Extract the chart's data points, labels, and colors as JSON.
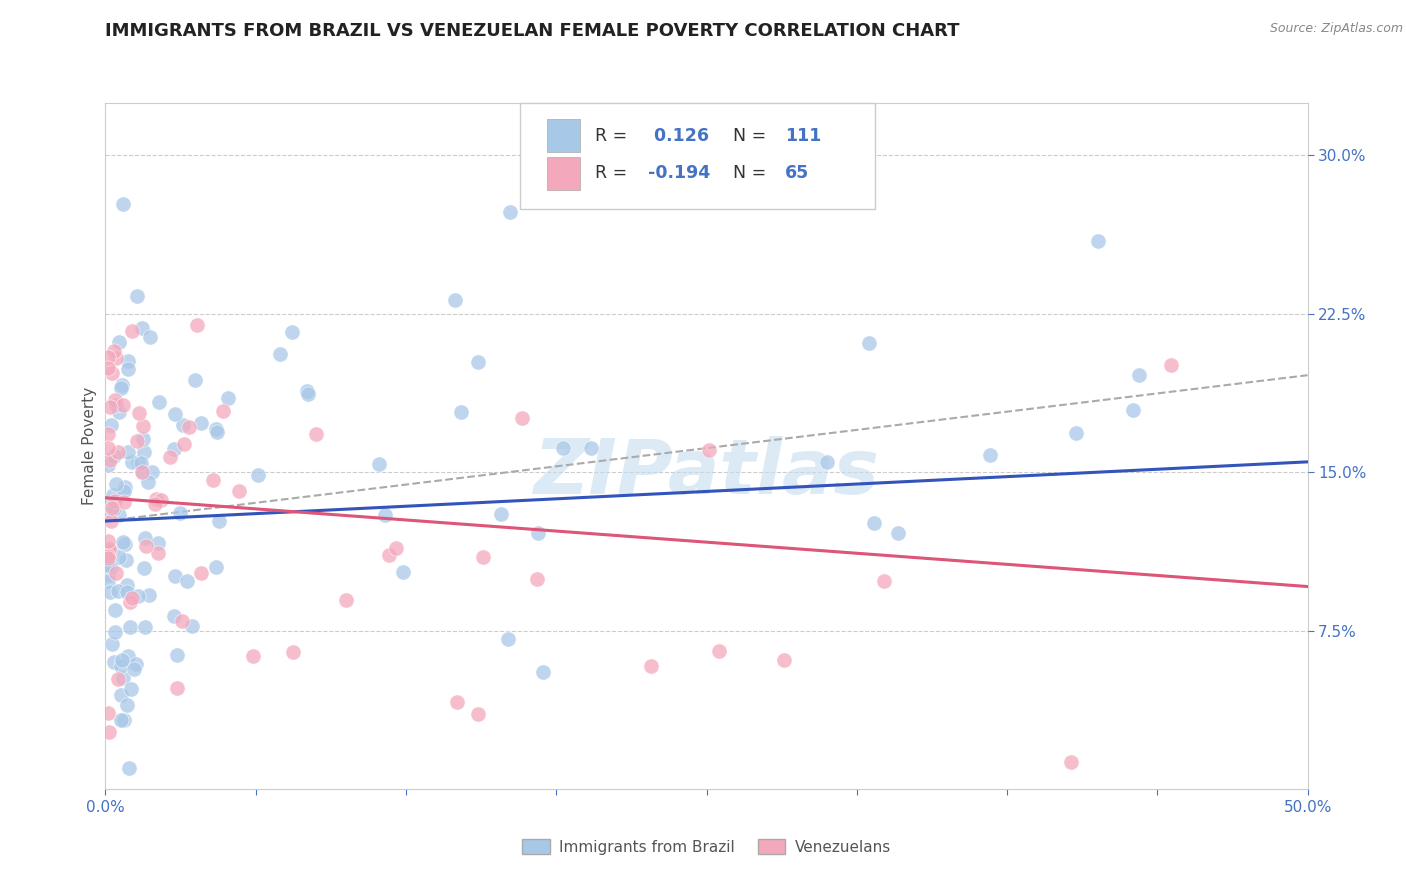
{
  "title": "IMMIGRANTS FROM BRAZIL VS VENEZUELAN FEMALE POVERTY CORRELATION CHART",
  "source_text": "Source: ZipAtlas.com",
  "ylabel": "Female Poverty",
  "xlim": [
    0.0,
    0.5
  ],
  "ylim": [
    0.0,
    0.325
  ],
  "yticks_right": [
    0.075,
    0.15,
    0.225,
    0.3
  ],
  "yticklabels_right": [
    "7.5%",
    "15.0%",
    "22.5%",
    "30.0%"
  ],
  "blue_color": "#a8c8e8",
  "pink_color": "#f4a8bc",
  "blue_line_color": "#3355bb",
  "pink_line_color": "#dd5577",
  "gray_line_color": "#aaaaaa",
  "r_blue": 0.126,
  "n_blue": 111,
  "r_pink": -0.194,
  "n_pink": 65,
  "legend_label_blue": "Immigrants from Brazil",
  "legend_label_pink": "Venezuelans",
  "watermark": "ZIPatlas",
  "background_color": "#ffffff",
  "grid_color": "#cccccc",
  "title_color": "#222222",
  "title_fontsize": 13,
  "axis_label_color": "#555555",
  "tick_label_color_blue": "#4472c4",
  "blue_trend_start_x": 0.0,
  "blue_trend_start_y": 0.127,
  "blue_trend_end_x": 0.5,
  "blue_trend_end_y": 0.155,
  "pink_trend_start_x": 0.0,
  "pink_trend_start_y": 0.138,
  "pink_trend_end_x": 0.5,
  "pink_trend_end_y": 0.096,
  "gray_trend_start_x": 0.0,
  "gray_trend_start_y": 0.127,
  "gray_trend_end_x": 0.5,
  "gray_trend_end_y": 0.196
}
